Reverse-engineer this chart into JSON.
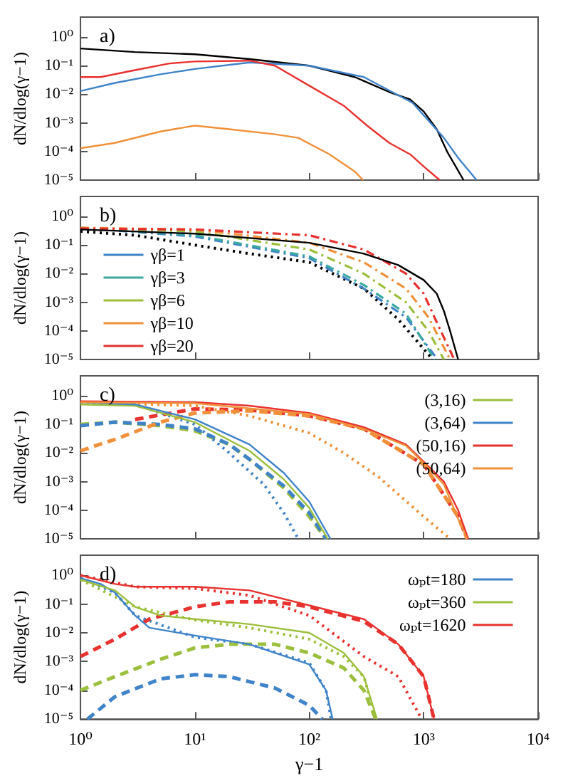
{
  "chart_data": [
    {
      "type": "line",
      "title": "a)",
      "ylabel": "dN/dlog(γ−1)",
      "log": "xy",
      "marker": "none",
      "tick_labels": "y",
      "xlim": [
        1,
        10000
      ],
      "ylim": [
        1e-05,
        5
      ],
      "xticks": [
        {
          "value": 1,
          "label": null
        },
        {
          "value": 10,
          "label": null
        },
        {
          "value": 100,
          "label": null
        },
        {
          "value": 1000,
          "label": null
        },
        {
          "value": 10000,
          "label": null
        }
      ],
      "yticks": [
        {
          "value": 1e-05,
          "label": "10⁻⁵"
        },
        {
          "value": 0.0001,
          "label": "10⁻⁴"
        },
        {
          "value": 0.001,
          "label": "10⁻³"
        },
        {
          "value": 0.01,
          "label": "10⁻²"
        },
        {
          "value": 0.1,
          "label": "10⁻¹"
        },
        {
          "value": 1,
          "label": "10⁰"
        }
      ],
      "series": [
        {
          "color": "#000000",
          "line_style": "solid",
          "x": [
            1,
            3,
            10,
            30,
            100,
            250,
            500,
            760,
            1000,
            1300,
            1600,
            2230
          ],
          "values": [
            0.4,
            0.3,
            0.25,
            0.17,
            0.1,
            0.04,
            0.012,
            0.0066,
            0.0025,
            0.0006,
            0.0001,
            1e-05
          ]
        },
        {
          "color": "#3f83c8",
          "line_style": "solid",
          "x": [
            1,
            2,
            5,
            10,
            30,
            100,
            300,
            800,
            1500,
            2000,
            2900
          ],
          "values": [
            0.013,
            0.025,
            0.05,
            0.077,
            0.13,
            0.1,
            0.04,
            0.005,
            0.0003,
            6e-05,
            1e-05
          ]
        },
        {
          "color": "#e8322f",
          "line_style": "solid",
          "x": [
            1,
            1.5,
            3,
            6,
            10,
            30,
            50,
            100,
            200,
            320,
            500,
            760,
            1000,
            1380
          ],
          "values": [
            0.04,
            0.04,
            0.07,
            0.12,
            0.14,
            0.15,
            0.1,
            0.02,
            0.004,
            0.0008,
            0.0002,
            8e-05,
            3e-05,
            1e-05
          ]
        },
        {
          "color": "#f0913a",
          "line_style": "solid",
          "x": [
            1,
            2,
            5,
            10,
            20,
            50,
            80,
            150,
            250,
            295
          ],
          "values": [
            0.00013,
            0.0002,
            0.0005,
            0.0008,
            0.0006,
            0.0004,
            0.0003,
            8e-05,
            2e-05,
            1e-05
          ]
        }
      ]
    },
    {
      "type": "line",
      "title": "b)",
      "ylabel": "dN/dlog(γ−1)",
      "log": "xy",
      "marker": "none",
      "tick_labels": "y",
      "legend": "left",
      "xlim": [
        1,
        10000
      ],
      "ylim": [
        1e-05,
        5
      ],
      "xticks": [
        {
          "value": 1,
          "label": null
        },
        {
          "value": 10,
          "label": null
        },
        {
          "value": 100,
          "label": null
        },
        {
          "value": 1000,
          "label": null
        },
        {
          "value": 10000,
          "label": null
        }
      ],
      "yticks": [
        {
          "value": 1e-05,
          "label": "10⁻⁵"
        },
        {
          "value": 0.0001,
          "label": "10⁻⁴"
        },
        {
          "value": 0.001,
          "label": "10⁻³"
        },
        {
          "value": 0.01,
          "label": "10⁻²"
        },
        {
          "value": 0.1,
          "label": "10⁻¹"
        },
        {
          "value": 1,
          "label": "10⁰"
        }
      ],
      "series": [
        {
          "color": "#000000",
          "line_style": "solid",
          "x": [
            1,
            10,
            100,
            300,
            600,
            1000,
            1300,
            1500,
            1700,
            2000
          ],
          "values": [
            0.35,
            0.25,
            0.12,
            0.05,
            0.02,
            0.006,
            0.002,
            0.0005,
            0.0001,
            1e-05
          ]
        },
        {
          "color": "#000000",
          "line_style": "dotted",
          "x": [
            1,
            3,
            10,
            30,
            100,
            300,
            600,
            1200
          ],
          "values": [
            0.3,
            0.22,
            0.1,
            0.05,
            0.025,
            0.003,
            0.00025,
            1e-05
          ]
        },
        {
          "name": "γβ=1",
          "color": "#3f83c8",
          "line_style": "dashdot",
          "x": [
            1,
            10,
            100,
            300,
            700,
            1320
          ],
          "values": [
            0.4,
            0.2,
            0.035,
            0.003,
            0.0003,
            1e-05
          ]
        },
        {
          "name": "γβ=3",
          "color": "#3aaaa0",
          "line_style": "dashdot",
          "x": [
            1,
            10,
            100,
            300,
            700,
            1250
          ],
          "values": [
            0.4,
            0.22,
            0.04,
            0.004,
            0.0004,
            1e-05
          ]
        },
        {
          "name": "γβ=6",
          "color": "#9cbf3c",
          "line_style": "dashdot",
          "x": [
            1,
            10,
            100,
            300,
            700,
            1100,
            1500
          ],
          "values": [
            0.4,
            0.3,
            0.07,
            0.01,
            0.001,
            0.0001,
            1e-05
          ]
        },
        {
          "name": "γβ=10",
          "color": "#f0913a",
          "line_style": "dashdot",
          "x": [
            1,
            10,
            100,
            300,
            700,
            1100,
            1700
          ],
          "values": [
            0.4,
            0.35,
            0.12,
            0.025,
            0.003,
            0.0003,
            1e-05
          ]
        },
        {
          "name": "γβ=20",
          "color": "#e8322f",
          "line_style": "dashdot",
          "x": [
            1,
            10,
            100,
            300,
            700,
            1000,
            1300,
            1850
          ],
          "values": [
            0.38,
            0.35,
            0.22,
            0.07,
            0.01,
            0.002,
            0.0002,
            1e-05
          ]
        }
      ]
    },
    {
      "type": "line",
      "title": "c)",
      "ylabel": "dN/dlog(γ−1)",
      "log": "xy",
      "marker": "none",
      "tick_labels": "y",
      "legend": "top right",
      "xlim": [
        1,
        10000
      ],
      "ylim": [
        1e-05,
        5
      ],
      "xticks": [
        {
          "value": 1,
          "label": null
        },
        {
          "value": 10,
          "label": null
        },
        {
          "value": 100,
          "label": null
        },
        {
          "value": 1000,
          "label": null
        },
        {
          "value": 10000,
          "label": null
        }
      ],
      "yticks": [
        {
          "value": 1e-05,
          "label": "10⁻⁵"
        },
        {
          "value": 0.0001,
          "label": "10⁻⁴"
        },
        {
          "value": 0.001,
          "label": "10⁻³"
        },
        {
          "value": 0.01,
          "label": "10⁻²"
        },
        {
          "value": 0.1,
          "label": "10⁻¹"
        },
        {
          "value": 1,
          "label": "10⁰"
        }
      ],
      "series": [
        {
          "name": "(3,16)",
          "color": "#9cbf3c",
          "line_style": "solid",
          "x": [
            1,
            3,
            10,
            30,
            60,
            100,
            145
          ],
          "values": [
            0.5,
            0.45,
            0.12,
            0.012,
            0.0012,
            0.00012,
            1e-05
          ]
        },
        {
          "name": "(3,64)",
          "color": "#3f83c8",
          "line_style": "solid",
          "x": [
            1,
            3,
            10,
            30,
            60,
            100,
            153
          ],
          "values": [
            0.6,
            0.5,
            0.15,
            0.02,
            0.002,
            0.0002,
            1e-05
          ]
        },
        {
          "name": "(50,16)",
          "color": "#e8322f",
          "line_style": "solid",
          "x": [
            1,
            10,
            30,
            100,
            300,
            700,
            1000,
            1500,
            2000,
            2450
          ],
          "values": [
            0.65,
            0.6,
            0.45,
            0.25,
            0.08,
            0.02,
            0.005,
            0.001,
            0.0001,
            1e-05
          ]
        },
        {
          "name": "(50,64)",
          "color": "#f0913a",
          "line_style": "solid",
          "x": [
            1,
            10,
            100,
            300,
            700,
            1000,
            1500,
            2000,
            2400
          ],
          "values": [
            0.6,
            0.55,
            0.23,
            0.07,
            0.018,
            0.0045,
            0.0008,
            5e-05,
            1e-05
          ]
        },
        {
          "color": "#9cbf3c",
          "line_style": "dashed",
          "x": [
            1,
            2,
            5,
            10,
            20,
            30,
            60,
            100,
            140
          ],
          "values": [
            0.1,
            0.12,
            0.09,
            0.06,
            0.02,
            0.006,
            0.0006,
            6e-05,
            1e-05
          ]
        },
        {
          "color": "#3f83c8",
          "line_style": "dashed",
          "x": [
            1,
            2,
            5,
            10,
            20,
            30,
            60,
            100,
            140
          ],
          "values": [
            0.09,
            0.12,
            0.1,
            0.07,
            0.02,
            0.006,
            0.0007,
            8e-05,
            1e-05
          ]
        },
        {
          "color": "#3f83c8",
          "line_style": "dotted",
          "x": [
            1,
            3,
            10,
            20,
            40,
            60,
            80
          ],
          "values": [
            0.6,
            0.5,
            0.1,
            0.01,
            0.0008,
            8e-05,
            1e-05
          ]
        },
        {
          "color": "#e8322f",
          "line_style": "dashed",
          "x": [
            3,
            10,
            30,
            100,
            300,
            1000,
            2000,
            2400
          ],
          "values": [
            0.15,
            0.35,
            0.32,
            0.2,
            0.07,
            0.004,
            6e-05,
            1e-05
          ]
        },
        {
          "color": "#f0913a",
          "line_style": "dashed",
          "x": [
            1,
            2,
            5,
            10,
            30,
            100,
            300,
            1000,
            2000,
            2400
          ],
          "values": [
            0.012,
            0.03,
            0.12,
            0.25,
            0.3,
            0.2,
            0.07,
            0.004,
            6e-05,
            1e-05
          ]
        },
        {
          "color": "#f0913a",
          "line_style": "dotted",
          "x": [
            1,
            10,
            30,
            100,
            200,
            400,
            1000,
            1700
          ],
          "values": [
            0.6,
            0.45,
            0.2,
            0.05,
            0.01,
            0.0015,
            6e-05,
            1e-05
          ]
        }
      ]
    },
    {
      "type": "line",
      "title": "d)",
      "ylabel": "dN/dlog(γ−1)",
      "xlabel": "γ−1",
      "log": "xy",
      "marker": "none",
      "legend": "top right",
      "xlim": [
        1,
        10000
      ],
      "ylim": [
        1e-05,
        5
      ],
      "xticks": [
        {
          "value": 1,
          "label": "10⁰"
        },
        {
          "value": 10,
          "label": "10¹"
        },
        {
          "value": 100,
          "label": "10²"
        },
        {
          "value": 1000,
          "label": "10³"
        },
        {
          "value": 10000,
          "label": "10⁴"
        }
      ],
      "yticks": [
        {
          "value": 1e-05,
          "label": "10⁻⁵"
        },
        {
          "value": 0.0001,
          "label": "10⁻⁴"
        },
        {
          "value": 0.001,
          "label": "10⁻³"
        },
        {
          "value": 0.01,
          "label": "10⁻²"
        },
        {
          "value": 0.1,
          "label": "10⁻¹"
        },
        {
          "value": 1,
          "label": "10⁰"
        }
      ],
      "series": [
        {
          "name": "ωₚt=180",
          "color": "#3f83c8",
          "line_style": "solid",
          "x": [
            1,
            1.5,
            2,
            3,
            4,
            10,
            30,
            100,
            140,
            160
          ],
          "values": [
            0.8,
            0.5,
            0.25,
            0.04,
            0.015,
            0.008,
            0.004,
            0.0008,
            0.0001,
            1e-05
          ]
        },
        {
          "name": "ωₚt=360",
          "color": "#9cbf3c",
          "line_style": "solid",
          "x": [
            1,
            2,
            3,
            5,
            10,
            30,
            100,
            200,
            300,
            390
          ],
          "values": [
            0.7,
            0.3,
            0.08,
            0.04,
            0.03,
            0.02,
            0.01,
            0.002,
            0.0003,
            1e-05
          ]
        },
        {
          "name": "ωₚt=1620",
          "color": "#e8322f",
          "line_style": "solid",
          "x": [
            1,
            2,
            3,
            10,
            30,
            100,
            300,
            600,
            1000,
            1230
          ],
          "values": [
            1,
            0.5,
            0.4,
            0.4,
            0.3,
            0.09,
            0.03,
            0.004,
            0.0003,
            1e-05
          ]
        },
        {
          "color": "#3f83c8",
          "line_style": "dotted",
          "x": [
            1,
            2,
            3,
            10,
            30,
            100,
            140,
            155
          ],
          "values": [
            0.8,
            0.25,
            0.04,
            0.007,
            0.004,
            0.0009,
            0.0001,
            1e-05
          ]
        },
        {
          "color": "#3f83c8",
          "line_style": "dashed",
          "x": [
            1.15,
            2,
            5,
            10,
            20,
            50,
            100,
            130
          ],
          "values": [
            1e-05,
            6e-05,
            0.00025,
            0.00035,
            0.0003,
            0.00012,
            3e-05,
            1e-05
          ]
        },
        {
          "color": "#9cbf3c",
          "line_style": "dotted",
          "x": [
            1,
            3,
            10,
            30,
            100,
            200,
            300,
            380
          ],
          "values": [
            0.7,
            0.08,
            0.028,
            0.015,
            0.006,
            0.0015,
            0.0003,
            1e-05
          ]
        },
        {
          "color": "#9cbf3c",
          "line_style": "dashed",
          "x": [
            1,
            2,
            5,
            10,
            20,
            50,
            100,
            200,
            300,
            380
          ],
          "values": [
            0.0001,
            0.0003,
            0.0012,
            0.003,
            0.004,
            0.004,
            0.002,
            0.0006,
            0.0001,
            1e-05
          ]
        },
        {
          "color": "#e8322f",
          "line_style": "dotted",
          "x": [
            1,
            3,
            10,
            30,
            100,
            300,
            600,
            960
          ],
          "values": [
            1,
            0.4,
            0.35,
            0.2,
            0.04,
            0.0015,
            0.0003,
            1e-05
          ]
        },
        {
          "color": "#e8322f",
          "line_style": "dashed",
          "x": [
            1,
            2,
            4,
            10,
            20,
            50,
            100,
            300,
            600,
            1000,
            1230
          ],
          "values": [
            0.0015,
            0.006,
            0.03,
            0.08,
            0.12,
            0.12,
            0.08,
            0.025,
            0.004,
            0.0003,
            1e-05
          ]
        }
      ]
    }
  ]
}
